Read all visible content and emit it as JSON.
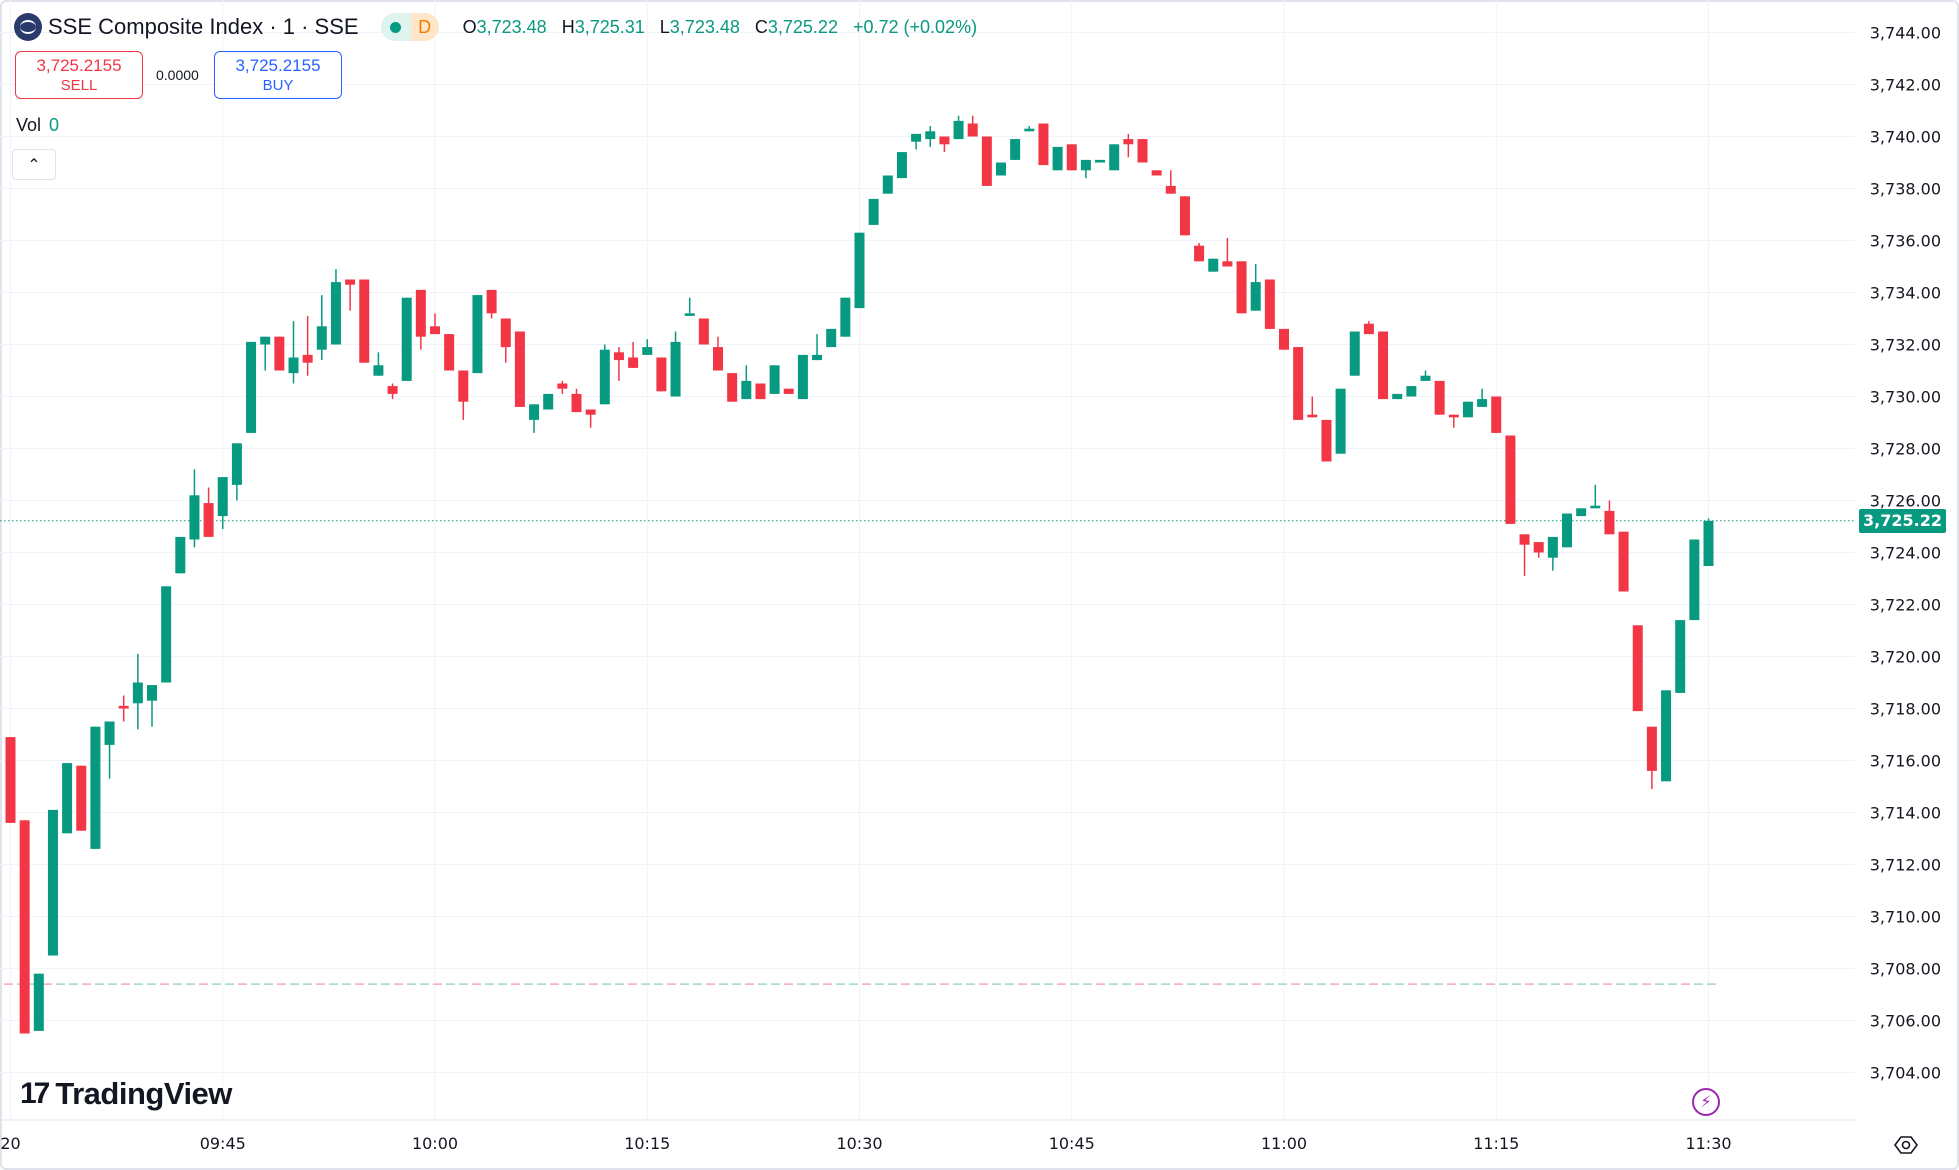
{
  "header": {
    "title": "SSE Composite Index · 1 · SSE",
    "market_status_icon": "green-dot",
    "interval_badge": "D",
    "ohlc": {
      "o_label": "O",
      "o": "3,723.48",
      "h_label": "H",
      "h": "3,725.31",
      "l_label": "L",
      "l": "3,723.48",
      "c_label": "C",
      "c": "3,725.22",
      "change": "+0.72 (+0.02%)"
    }
  },
  "trade": {
    "sell_price": "3,725.2155",
    "sell_label": "SELL",
    "spread": "0.0000",
    "buy_price": "3,725.2155",
    "buy_label": "BUY"
  },
  "volume": {
    "label": "Vol",
    "value": "0"
  },
  "collapse_icon": "chevron-up",
  "branding": {
    "logo_text": "TradingView"
  },
  "colors": {
    "up": "#089981",
    "down": "#f23645",
    "grid": "#f0f3fa",
    "last_price": "#089981"
  },
  "price_axis": {
    "labels": [
      "3,744.00",
      "3,742.00",
      "3,740.00",
      "3,738.00",
      "3,736.00",
      "3,734.00",
      "3,732.00",
      "3,730.00",
      "3,728.00",
      "3,726.00",
      "3,724.00",
      "3,722.00",
      "3,720.00",
      "3,718.00",
      "3,716.00",
      "3,714.00",
      "3,712.00",
      "3,710.00",
      "3,708.00",
      "3,706.00",
      "3,704.00"
    ],
    "last_price": "3,725.22"
  },
  "time_axis": {
    "labels": [
      "20",
      "09:45",
      "10:00",
      "10:15",
      "10:30",
      "10:45",
      "11:00",
      "11:15",
      "11:30"
    ]
  },
  "chart_data": {
    "type": "candlestick",
    "symbol": "SSE Composite Index",
    "interval_minutes": 1,
    "start_time": "09:30",
    "ylim": [
      3703,
      3745
    ],
    "last_price": 3725.22,
    "prev_close_line": 3707.4,
    "fields": [
      "open",
      "high",
      "low",
      "close"
    ],
    "ohlc": [
      [
        3716.9,
        3716.9,
        3713.6,
        3713.6
      ],
      [
        3713.7,
        3713.7,
        3705.5,
        3705.5
      ],
      [
        3705.6,
        3707.8,
        3705.6,
        3707.8
      ],
      [
        3708.5,
        3714.1,
        3708.5,
        3714.1
      ],
      [
        3713.2,
        3715.9,
        3713.2,
        3715.9
      ],
      [
        3715.8,
        3715.8,
        3713.3,
        3713.3
      ],
      [
        3712.6,
        3717.3,
        3712.6,
        3717.3
      ],
      [
        3716.6,
        3717.5,
        3715.3,
        3717.5
      ],
      [
        3718.1,
        3718.5,
        3717.5,
        3718.0
      ],
      [
        3718.2,
        3720.1,
        3717.2,
        3719.0
      ],
      [
        3718.3,
        3718.9,
        3717.3,
        3718.9
      ],
      [
        3719.0,
        3722.7,
        3719.0,
        3722.7
      ],
      [
        3723.2,
        3724.6,
        3723.2,
        3724.6
      ],
      [
        3724.5,
        3727.2,
        3724.2,
        3726.2
      ],
      [
        3725.9,
        3726.5,
        3724.6,
        3724.6
      ],
      [
        3725.4,
        3726.9,
        3724.9,
        3726.9
      ],
      [
        3726.6,
        3728.2,
        3726.0,
        3728.2
      ],
      [
        3728.6,
        3732.1,
        3728.6,
        3732.1
      ],
      [
        3732.0,
        3732.3,
        3731.0,
        3732.3
      ],
      [
        3732.3,
        3732.3,
        3731.0,
        3731.0
      ],
      [
        3730.9,
        3732.9,
        3730.5,
        3731.5
      ],
      [
        3731.6,
        3733.1,
        3730.8,
        3731.3
      ],
      [
        3731.8,
        3733.9,
        3731.4,
        3732.7
      ],
      [
        3732.0,
        3734.9,
        3732.0,
        3734.4
      ],
      [
        3734.5,
        3734.5,
        3733.3,
        3734.3
      ],
      [
        3734.5,
        3734.5,
        3731.3,
        3731.3
      ],
      [
        3730.8,
        3731.7,
        3730.8,
        3731.2
      ],
      [
        3730.4,
        3730.5,
        3729.9,
        3730.1
      ],
      [
        3730.6,
        3733.8,
        3730.6,
        3733.8
      ],
      [
        3734.1,
        3734.1,
        3731.8,
        3732.3
      ],
      [
        3732.7,
        3733.2,
        3732.4,
        3732.4
      ],
      [
        3732.4,
        3732.4,
        3731.0,
        3731.0
      ],
      [
        3731.0,
        3731.0,
        3729.1,
        3729.8
      ],
      [
        3730.9,
        3733.9,
        3730.9,
        3733.9
      ],
      [
        3734.1,
        3734.1,
        3733.0,
        3733.2
      ],
      [
        3733.0,
        3733.0,
        3731.3,
        3731.9
      ],
      [
        3732.5,
        3732.5,
        3729.6,
        3729.6
      ],
      [
        3729.1,
        3729.7,
        3728.6,
        3729.7
      ],
      [
        3729.5,
        3730.1,
        3729.5,
        3730.1
      ],
      [
        3730.5,
        3730.6,
        3730.1,
        3730.3
      ],
      [
        3730.1,
        3730.3,
        3729.4,
        3729.4
      ],
      [
        3729.5,
        3729.5,
        3728.8,
        3729.3
      ],
      [
        3729.7,
        3732.0,
        3729.7,
        3731.8
      ],
      [
        3731.7,
        3731.9,
        3730.6,
        3731.4
      ],
      [
        3731.5,
        3732.1,
        3731.1,
        3731.1
      ],
      [
        3731.6,
        3732.2,
        3731.6,
        3731.9
      ],
      [
        3731.5,
        3731.5,
        3730.2,
        3730.2
      ],
      [
        3730.0,
        3732.5,
        3730.0,
        3732.1
      ],
      [
        3733.1,
        3733.8,
        3733.1,
        3733.2
      ],
      [
        3733.0,
        3733.0,
        3732.0,
        3732.0
      ],
      [
        3731.9,
        3732.3,
        3731.0,
        3731.0
      ],
      [
        3730.9,
        3730.9,
        3729.8,
        3729.8
      ],
      [
        3729.9,
        3731.2,
        3729.9,
        3730.6
      ],
      [
        3730.5,
        3730.5,
        3729.9,
        3729.9
      ],
      [
        3730.1,
        3731.2,
        3730.1,
        3731.2
      ],
      [
        3730.3,
        3730.3,
        3730.1,
        3730.1
      ],
      [
        3729.9,
        3731.6,
        3729.9,
        3731.6
      ],
      [
        3731.4,
        3732.4,
        3731.4,
        3731.6
      ],
      [
        3731.9,
        3732.6,
        3731.9,
        3732.6
      ],
      [
        3732.3,
        3733.8,
        3732.3,
        3733.8
      ],
      [
        3733.4,
        3736.3,
        3733.4,
        3736.3
      ],
      [
        3736.6,
        3737.6,
        3736.6,
        3737.6
      ],
      [
        3737.8,
        3738.5,
        3737.8,
        3738.5
      ],
      [
        3738.4,
        3739.4,
        3738.4,
        3739.4
      ],
      [
        3739.8,
        3740.1,
        3739.5,
        3740.1
      ],
      [
        3739.9,
        3740.4,
        3739.6,
        3740.2
      ],
      [
        3740.0,
        3740.0,
        3739.4,
        3739.7
      ],
      [
        3739.9,
        3740.8,
        3739.9,
        3740.6
      ],
      [
        3740.5,
        3740.8,
        3740.0,
        3740.0
      ],
      [
        3740.0,
        3740.0,
        3738.1,
        3738.1
      ],
      [
        3738.5,
        3739.0,
        3738.5,
        3739.0
      ],
      [
        3739.1,
        3739.9,
        3739.1,
        3739.9
      ],
      [
        3740.2,
        3740.4,
        3740.2,
        3740.3
      ],
      [
        3740.5,
        3740.5,
        3738.9,
        3738.9
      ],
      [
        3738.7,
        3739.6,
        3738.7,
        3739.6
      ],
      [
        3739.7,
        3739.7,
        3738.7,
        3738.7
      ],
      [
        3738.7,
        3739.1,
        3738.4,
        3739.1
      ],
      [
        3739.0,
        3739.1,
        3739.0,
        3739.1
      ],
      [
        3738.7,
        3739.7,
        3738.7,
        3739.7
      ],
      [
        3739.9,
        3740.1,
        3739.2,
        3739.7
      ],
      [
        3739.9,
        3739.9,
        3739.0,
        3739.0
      ],
      [
        3738.7,
        3738.7,
        3738.5,
        3738.5
      ],
      [
        3738.1,
        3738.7,
        3737.8,
        3737.8
      ],
      [
        3737.7,
        3737.7,
        3736.2,
        3736.2
      ],
      [
        3735.8,
        3735.9,
        3735.2,
        3735.2
      ],
      [
        3734.8,
        3735.3,
        3734.8,
        3735.3
      ],
      [
        3735.2,
        3736.1,
        3735.0,
        3735.0
      ],
      [
        3735.2,
        3735.2,
        3733.2,
        3733.2
      ],
      [
        3733.3,
        3735.1,
        3733.3,
        3734.4
      ],
      [
        3734.5,
        3734.5,
        3732.6,
        3732.6
      ],
      [
        3732.6,
        3732.6,
        3731.8,
        3731.8
      ],
      [
        3731.9,
        3731.9,
        3729.1,
        3729.1
      ],
      [
        3729.3,
        3730.0,
        3729.2,
        3729.2
      ],
      [
        3729.1,
        3729.1,
        3727.5,
        3727.5
      ],
      [
        3727.8,
        3730.3,
        3727.8,
        3730.3
      ],
      [
        3730.8,
        3732.5,
        3730.8,
        3732.5
      ],
      [
        3732.8,
        3732.9,
        3732.4,
        3732.4
      ],
      [
        3732.5,
        3732.5,
        3729.9,
        3729.9
      ],
      [
        3729.9,
        3730.1,
        3729.9,
        3730.1
      ],
      [
        3730.0,
        3730.4,
        3730.0,
        3730.4
      ],
      [
        3730.6,
        3731.0,
        3730.6,
        3730.8
      ],
      [
        3730.6,
        3730.6,
        3729.3,
        3729.3
      ],
      [
        3729.3,
        3729.3,
        3728.8,
        3729.2
      ],
      [
        3729.2,
        3729.8,
        3729.2,
        3729.8
      ],
      [
        3729.6,
        3730.3,
        3729.6,
        3729.9
      ],
      [
        3730.0,
        3730.0,
        3728.6,
        3728.6
      ],
      [
        3728.5,
        3728.5,
        3725.1,
        3725.1
      ],
      [
        3724.7,
        3724.7,
        3723.1,
        3724.3
      ],
      [
        3724.4,
        3724.4,
        3723.8,
        3724.0
      ],
      [
        3723.8,
        3724.6,
        3723.3,
        3724.6
      ],
      [
        3724.2,
        3725.5,
        3724.2,
        3725.5
      ],
      [
        3725.4,
        3725.7,
        3725.4,
        3725.7
      ],
      [
        3725.7,
        3726.6,
        3725.7,
        3725.8
      ],
      [
        3725.6,
        3726.0,
        3724.7,
        3724.7
      ],
      [
        3724.8,
        3724.8,
        3722.5,
        3722.5
      ],
      [
        3721.2,
        3721.2,
        3717.9,
        3717.9
      ],
      [
        3717.3,
        3717.3,
        3714.9,
        3715.6
      ],
      [
        3715.2,
        3718.7,
        3715.2,
        3718.7
      ],
      [
        3718.6,
        3721.4,
        3718.6,
        3721.4
      ],
      [
        3721.4,
        3724.5,
        3721.4,
        3724.5
      ],
      [
        3723.48,
        3725.31,
        3723.48,
        3725.22
      ]
    ]
  }
}
